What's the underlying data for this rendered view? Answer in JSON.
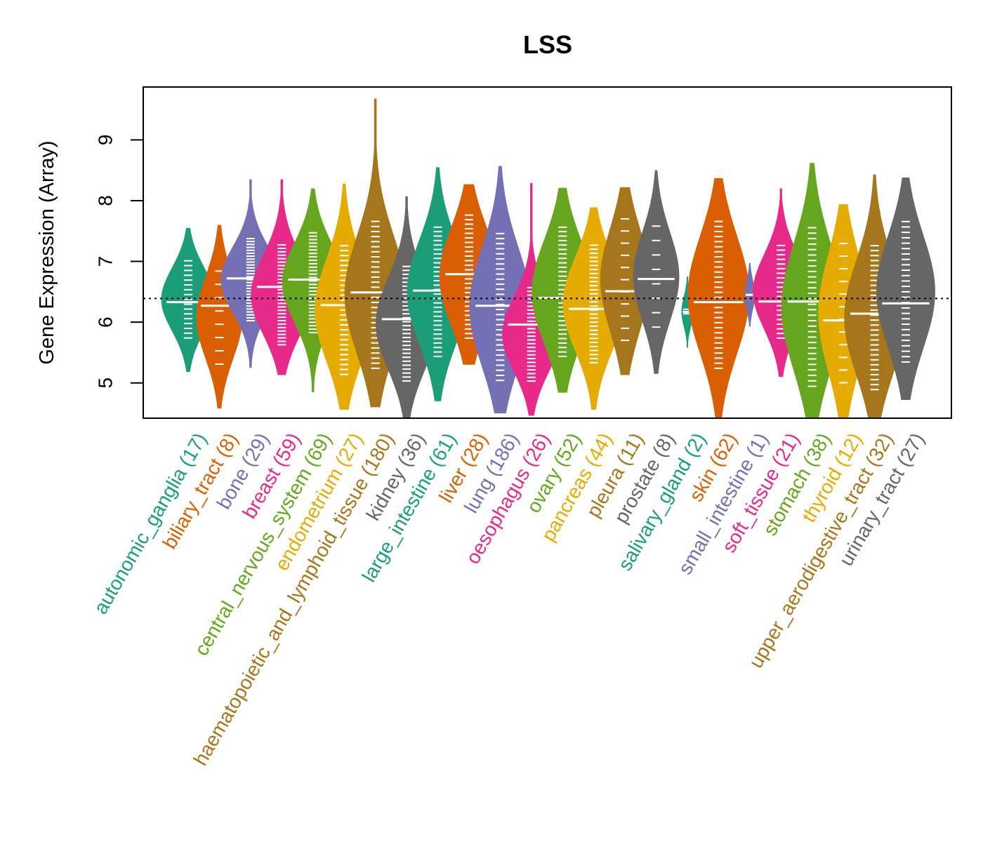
{
  "chart_data": {
    "type": "violin",
    "title": "LSS",
    "xlabel": "",
    "ylabel": "Gene Expression (Array)",
    "ylim": [
      4.42,
      9.87
    ],
    "yticks": [
      5,
      6,
      7,
      8,
      9
    ],
    "reference_line": 6.39,
    "grid": false,
    "legend": "none",
    "categories": [
      {
        "name": "autonomic_ganglia",
        "n": 17,
        "color": "#1B9E77",
        "median": 6.33,
        "min": 5.18,
        "max": 7.55,
        "q_low": 5.7,
        "q_high": 7.05
      },
      {
        "name": "biliary_tract",
        "n": 8,
        "color": "#D95F02",
        "median": 6.27,
        "min": 4.58,
        "max": 7.6,
        "q_low": 5.2,
        "q_high": 6.95
      },
      {
        "name": "bone",
        "n": 29,
        "color": "#7570B3",
        "median": 6.72,
        "min": 5.25,
        "max": 8.35,
        "q_low": 6.0,
        "q_high": 7.4
      },
      {
        "name": "breast",
        "n": 59,
        "color": "#E7298A",
        "median": 6.58,
        "min": 5.13,
        "max": 8.35,
        "q_low": 5.6,
        "q_high": 7.3
      },
      {
        "name": "central_nervous_system",
        "n": 69,
        "color": "#66A61E",
        "median": 6.7,
        "min": 4.85,
        "max": 8.2,
        "q_low": 5.8,
        "q_high": 7.5
      },
      {
        "name": "endometrium",
        "n": 27,
        "color": "#E6AB02",
        "median": 6.28,
        "min": 4.56,
        "max": 8.28,
        "q_low": 5.1,
        "q_high": 7.3
      },
      {
        "name": "haematopoietic_and_lymphoid_tissue",
        "n": 180,
        "color": "#A6761D",
        "median": 6.49,
        "min": 4.6,
        "max": 9.68,
        "q_low": 5.2,
        "q_high": 7.7
      },
      {
        "name": "kidney",
        "n": 36,
        "color": "#666666",
        "median": 6.05,
        "min": 4.42,
        "max": 8.07,
        "q_low": 5.0,
        "q_high": 6.95
      },
      {
        "name": "large_intestine",
        "n": 61,
        "color": "#1B9E77",
        "median": 6.52,
        "min": 4.7,
        "max": 8.55,
        "q_low": 5.4,
        "q_high": 7.6
      },
      {
        "name": "liver",
        "n": 28,
        "color": "#D95F02",
        "median": 6.79,
        "min": 5.3,
        "max": 8.27,
        "q_low": 5.7,
        "q_high": 7.8
      },
      {
        "name": "lung",
        "n": 186,
        "color": "#7570B3",
        "median": 6.27,
        "min": 4.5,
        "max": 8.57,
        "q_low": 5.0,
        "q_high": 7.5
      },
      {
        "name": "oesophagus",
        "n": 26,
        "color": "#E7298A",
        "median": 5.96,
        "min": 4.46,
        "max": 8.29,
        "q_low": 5.0,
        "q_high": 6.6
      },
      {
        "name": "ovary",
        "n": 52,
        "color": "#66A61E",
        "median": 6.4,
        "min": 4.84,
        "max": 8.21,
        "q_low": 5.4,
        "q_high": 7.6
      },
      {
        "name": "pancreas",
        "n": 44,
        "color": "#E6AB02",
        "median": 6.22,
        "min": 4.56,
        "max": 7.89,
        "q_low": 5.3,
        "q_high": 7.3
      },
      {
        "name": "pleura",
        "n": 11,
        "color": "#A6761D",
        "median": 6.51,
        "min": 5.13,
        "max": 8.22,
        "q_low": 5.6,
        "q_high": 7.8
      },
      {
        "name": "prostate",
        "n": 8,
        "color": "#666666",
        "median": 6.71,
        "min": 5.15,
        "max": 8.5,
        "q_low": 5.8,
        "q_high": 7.7
      },
      {
        "name": "salivary_gland",
        "n": 2,
        "color": "#1B9E77",
        "median": 6.17,
        "min": 5.58,
        "max": 6.75,
        "q_low": 6.1,
        "q_high": 6.25
      },
      {
        "name": "skin",
        "n": 62,
        "color": "#D95F02",
        "median": 6.33,
        "min": 4.42,
        "max": 8.37,
        "q_low": 5.2,
        "q_high": 7.7
      },
      {
        "name": "small_intestine",
        "n": 1,
        "color": "#7570B3",
        "median": 6.45,
        "min": 5.93,
        "max": 6.97,
        "q_low": 6.45,
        "q_high": 6.45
      },
      {
        "name": "soft_tissue",
        "n": 21,
        "color": "#E7298A",
        "median": 6.34,
        "min": 5.1,
        "max": 8.2,
        "q_low": 5.7,
        "q_high": 7.3
      },
      {
        "name": "stomach",
        "n": 38,
        "color": "#66A61E",
        "median": 6.34,
        "min": 4.42,
        "max": 8.62,
        "q_low": 4.9,
        "q_high": 7.6
      },
      {
        "name": "thyroid",
        "n": 12,
        "color": "#E6AB02",
        "median": 6.03,
        "min": 4.42,
        "max": 7.94,
        "q_low": 4.9,
        "q_high": 7.4
      },
      {
        "name": "upper_aerodigestive_tract",
        "n": 32,
        "color": "#A6761D",
        "median": 6.14,
        "min": 4.42,
        "max": 8.43,
        "q_low": 4.85,
        "q_high": 7.3
      },
      {
        "name": "urinary_tract",
        "n": 27,
        "color": "#666666",
        "median": 6.31,
        "min": 4.72,
        "max": 8.38,
        "q_low": 5.3,
        "q_high": 7.7
      }
    ]
  }
}
